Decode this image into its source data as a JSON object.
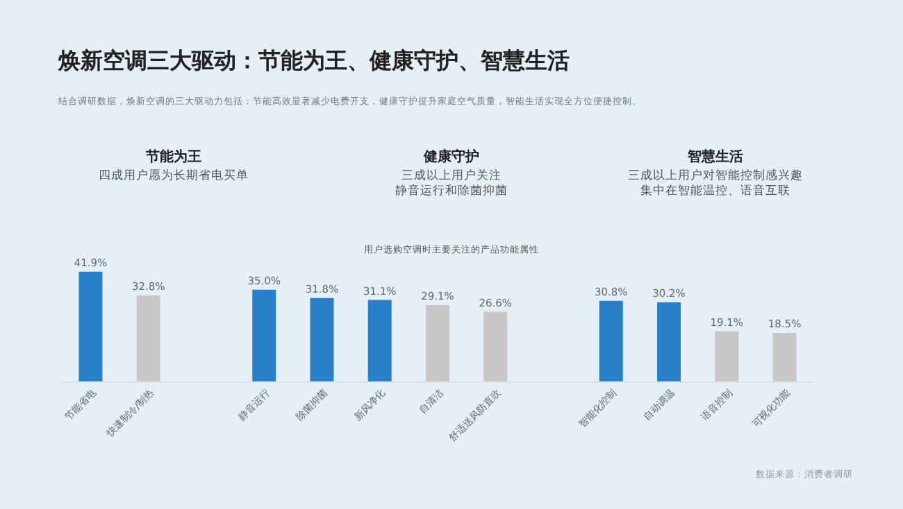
{
  "chart_data": {
    "type": "bar",
    "title": "焕新空调三大驱动：节能为王、健康守护、智慧生活",
    "subtitle": "结合调研数据，焕新空调的三大驱动力包括：节能高效显著减少电费开支，健康守护提升家庭空气质量，智能生活实现全方位便捷控制。",
    "annotations": [
      "节能为王",
      "四成用户愿为长期省电买单",
      "健康守护",
      "三成以上用户关注",
      "静音运行和除菌抑菌",
      "智慧生活",
      "三成以上用户对智能控制感兴趣",
      "集中在智能温控、语音互联",
      "用户选购空调时主要关注的产品功能属性",
      "数据来源：消费者调研"
    ],
    "categories": [
      "节能省电",
      "快速制冷/制热",
      null,
      "静音运行",
      "除菌抑菌",
      "新风净化",
      "自清洁",
      "舒适送风防直吹",
      null,
      "智能化控制",
      "自动调温",
      "语音控制",
      "可视化功能"
    ],
    "values": [
      41.9,
      32.8,
      null,
      35.0,
      31.8,
      31.1,
      29.1,
      26.6,
      null,
      30.8,
      30.2,
      19.1,
      18.5
    ],
    "value_labels": [
      "41.9%",
      "32.8%",
      null,
      "35.0%",
      "31.8%",
      "31.1%",
      "29.1%",
      "26.6%",
      null,
      "30.8%",
      "30.2%",
      "19.1%",
      "18.5%"
    ],
    "colors": [
      "#2a7fc9",
      "#c9c6c6",
      null,
      "#2a7fc9",
      "#2a7fc9",
      "#2a7fc9",
      "#c9c6c6",
      "#c9c6c6",
      null,
      "#2a7fc9",
      "#2a7fc9",
      "#c9c6c6",
      "#c9c6c6"
    ],
    "grid": false
  }
}
